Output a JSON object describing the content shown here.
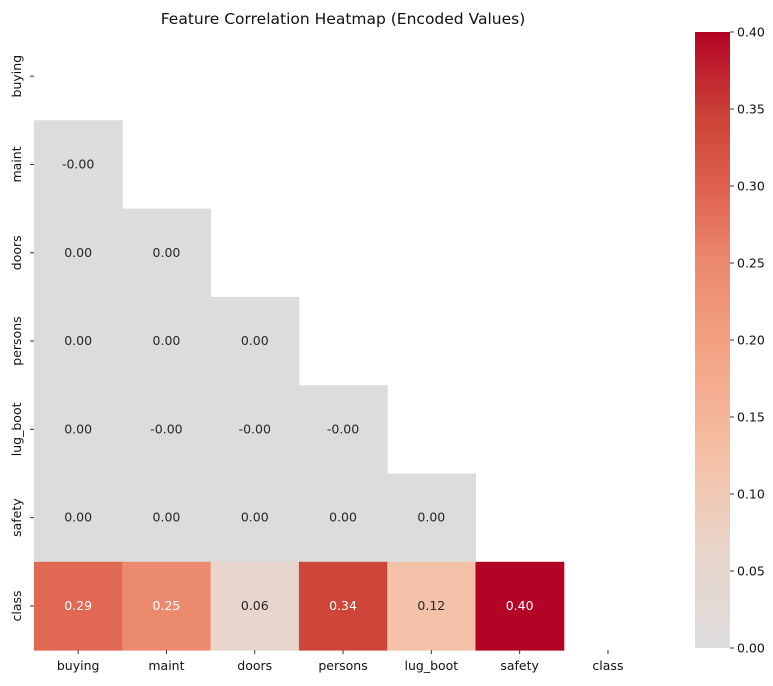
{
  "chart_data": {
    "type": "heatmap",
    "title": "Feature Correlation Heatmap (Encoded Values)",
    "xlabel": "",
    "ylabel": "",
    "mask": "upper-triangle-including-diagonal",
    "categories_x": [
      "buying",
      "maint",
      "doors",
      "persons",
      "lug_boot",
      "safety",
      "class"
    ],
    "categories_y": [
      "buying",
      "maint",
      "doors",
      "persons",
      "lug_boot",
      "safety",
      "class"
    ],
    "cells": [
      {
        "row": 1,
        "col": 0,
        "value": -0.0,
        "label": "-0.00"
      },
      {
        "row": 2,
        "col": 0,
        "value": 0.0,
        "label": "0.00"
      },
      {
        "row": 2,
        "col": 1,
        "value": 0.0,
        "label": "0.00"
      },
      {
        "row": 3,
        "col": 0,
        "value": 0.0,
        "label": "0.00"
      },
      {
        "row": 3,
        "col": 1,
        "value": 0.0,
        "label": "0.00"
      },
      {
        "row": 3,
        "col": 2,
        "value": 0.0,
        "label": "0.00"
      },
      {
        "row": 4,
        "col": 0,
        "value": 0.0,
        "label": "0.00"
      },
      {
        "row": 4,
        "col": 1,
        "value": -0.0,
        "label": "-0.00"
      },
      {
        "row": 4,
        "col": 2,
        "value": -0.0,
        "label": "-0.00"
      },
      {
        "row": 4,
        "col": 3,
        "value": -0.0,
        "label": "-0.00"
      },
      {
        "row": 5,
        "col": 0,
        "value": 0.0,
        "label": "0.00"
      },
      {
        "row": 5,
        "col": 1,
        "value": 0.0,
        "label": "0.00"
      },
      {
        "row": 5,
        "col": 2,
        "value": 0.0,
        "label": "0.00"
      },
      {
        "row": 5,
        "col": 3,
        "value": 0.0,
        "label": "0.00"
      },
      {
        "row": 5,
        "col": 4,
        "value": 0.0,
        "label": "0.00"
      },
      {
        "row": 6,
        "col": 0,
        "value": 0.29,
        "label": "0.29"
      },
      {
        "row": 6,
        "col": 1,
        "value": 0.25,
        "label": "0.25"
      },
      {
        "row": 6,
        "col": 2,
        "value": 0.06,
        "label": "0.06"
      },
      {
        "row": 6,
        "col": 3,
        "value": 0.34,
        "label": "0.34"
      },
      {
        "row": 6,
        "col": 4,
        "value": 0.12,
        "label": "0.12"
      },
      {
        "row": 6,
        "col": 5,
        "value": 0.4,
        "label": "0.40"
      }
    ],
    "colorbar": {
      "range": [
        0.0,
        0.4
      ],
      "ticks": [
        0.0,
        0.05,
        0.1,
        0.15,
        0.2,
        0.25,
        0.3,
        0.35,
        0.4
      ],
      "tick_labels": [
        "0.00",
        "0.05",
        "0.10",
        "0.15",
        "0.20",
        "0.25",
        "0.30",
        "0.35",
        "0.40"
      ],
      "colormap": "coolwarm-centered-at-0",
      "colors": {
        "zero": "#dddcdc",
        "low": "#f0cdb8",
        "mid": "#ec8a6d",
        "high": "#d03f36",
        "max": "#b40426"
      }
    }
  }
}
